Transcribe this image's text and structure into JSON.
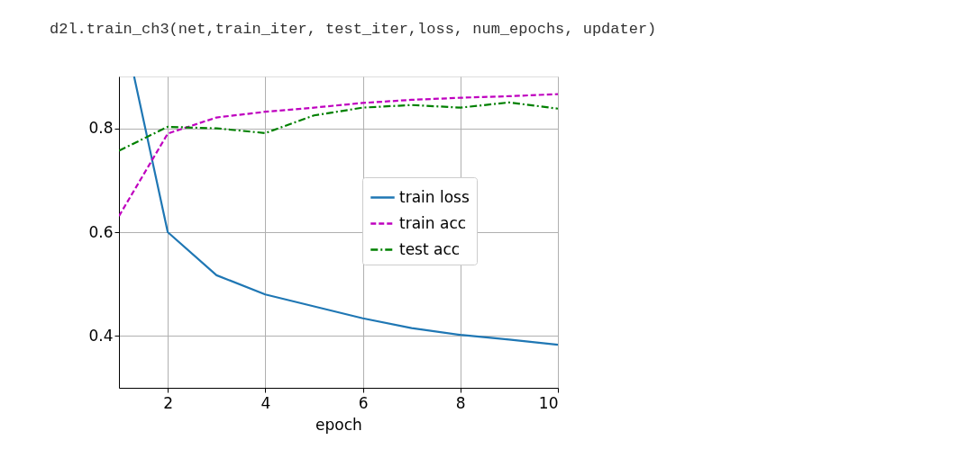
{
  "chart_data": {
    "type": "line",
    "annotations": [
      "d2l.train_ch3(net,train_iter, test_iter,loss, num_epochs, updater)"
    ],
    "xlabel": "epoch",
    "x": [
      1,
      2,
      3,
      4,
      5,
      6,
      7,
      8,
      9,
      10
    ],
    "xlim": [
      1,
      10
    ],
    "xticks": [
      2,
      4,
      6,
      8,
      10
    ],
    "ylim": [
      0.3,
      0.9
    ],
    "yticks": [
      0.4,
      0.6,
      0.8
    ],
    "grid": true,
    "legend": "right",
    "marker": "none",
    "series": [
      {
        "name": "train loss",
        "color": "#1f77b4",
        "line_style": "solid",
        "x": [
          1.31,
          2,
          3,
          4,
          5,
          6,
          7,
          8,
          9,
          10
        ],
        "values": [
          0.9,
          0.6,
          0.517,
          0.48,
          0.457,
          0.434,
          0.415,
          0.402,
          0.393,
          0.383
        ]
      },
      {
        "name": "train acc",
        "color": "#bf00bf",
        "line_style": "dashed",
        "values": [
          0.631,
          0.79,
          0.821,
          0.832,
          0.84,
          0.849,
          0.855,
          0.859,
          0.862,
          0.866
        ]
      },
      {
        "name": "test acc",
        "color": "#008000",
        "line_style": "dashdot",
        "values": [
          0.757,
          0.803,
          0.8,
          0.791,
          0.825,
          0.84,
          0.845,
          0.84,
          0.85,
          0.838
        ]
      }
    ]
  }
}
